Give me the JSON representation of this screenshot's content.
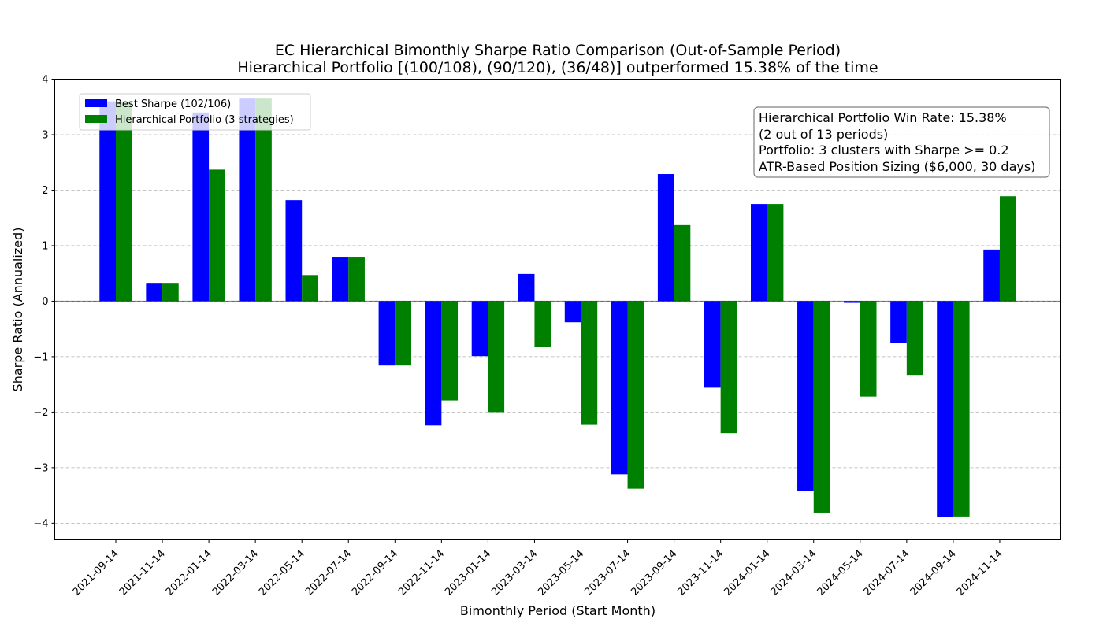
{
  "chart_data": {
    "type": "bar",
    "title": "EC Hierarchical Bimonthly Sharpe Ratio Comparison (Out-of-Sample Period)",
    "subtitle": "Hierarchical Portfolio [(100/108), (90/120), (36/48)] outperformed 15.38% of the time",
    "xlabel": "Bimonthly Period (Start Month)",
    "ylabel": "Sharpe Ratio (Annualized)",
    "ylim": [
      -4.3,
      4.0
    ],
    "yticks": [
      -4,
      -3,
      -2,
      -1,
      0,
      1,
      2,
      3,
      4
    ],
    "grid": "horizontal dashed",
    "legend_position": "upper-left",
    "categories": [
      "2021-09-14",
      "2021-11-14",
      "2022-01-14",
      "2022-03-14",
      "2022-05-14",
      "2022-07-14",
      "2022-09-14",
      "2022-11-14",
      "2023-01-14",
      "2023-03-14",
      "2023-05-14",
      "2023-07-14",
      "2023-09-14",
      "2023-11-14",
      "2024-01-14",
      "2024-03-14",
      "2024-05-14",
      "2024-07-14",
      "2024-09-14",
      "2024-11-14"
    ],
    "series": [
      {
        "name": "Best Sharpe (102/106)",
        "color": "#0000ff",
        "values": [
          3.6,
          0.33,
          3.4,
          3.65,
          1.82,
          0.8,
          -1.16,
          -2.24,
          -0.99,
          0.49,
          -0.38,
          -3.12,
          2.29,
          -1.56,
          1.75,
          -3.42,
          -0.03,
          -0.76,
          -3.89,
          0.93
        ]
      },
      {
        "name": "Hierarchical Portfolio (3 strategies)",
        "color": "#008000",
        "values": [
          3.6,
          0.33,
          2.37,
          3.65,
          0.47,
          0.8,
          -1.16,
          -1.79,
          -2.0,
          -0.83,
          -2.23,
          -3.38,
          1.37,
          -2.38,
          1.75,
          -3.81,
          -1.72,
          -1.33,
          -3.88,
          1.89
        ]
      }
    ],
    "annotation": {
      "lines": [
        "Hierarchical Portfolio Win Rate: 15.38%",
        "(2 out of 13 periods)",
        "Portfolio: 3 clusters with Sharpe >= 0.2",
        "ATR-Based Position Sizing ($6,000, 30 days)"
      ],
      "position": "upper-right"
    }
  }
}
